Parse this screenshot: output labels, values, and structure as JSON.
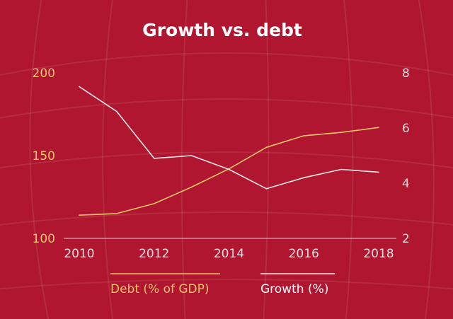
{
  "chart_data": {
    "type": "line",
    "title": "Growth vs. debt",
    "x": [
      2010,
      2011,
      2012,
      2013,
      2014,
      2015,
      2016,
      2017,
      2018
    ],
    "x_ticks": [
      "2010",
      "2012",
      "2014",
      "2016",
      "2018"
    ],
    "xlim": [
      2010,
      2018
    ],
    "y_left": {
      "lim": [
        100,
        200
      ],
      "ticks": [
        "100",
        "150",
        "200"
      ]
    },
    "y_right": {
      "lim": [
        2,
        8
      ],
      "ticks": [
        "2",
        "4",
        "6",
        "8"
      ]
    },
    "series": [
      {
        "name": "Debt (% of GDP)",
        "axis": "left",
        "color": "#f2c46b",
        "values": [
          114,
          115,
          121,
          131,
          142,
          155,
          162,
          164,
          167
        ]
      },
      {
        "name": "Growth (%)",
        "axis": "right",
        "color": "#f5e6e8",
        "values": [
          7.5,
          6.6,
          4.9,
          5.0,
          4.5,
          3.8,
          4.2,
          4.5,
          4.4
        ]
      }
    ],
    "grid": false,
    "legend_position": "bottom",
    "background_color": "#b0162f",
    "axis_color": "#e8c7cc"
  }
}
